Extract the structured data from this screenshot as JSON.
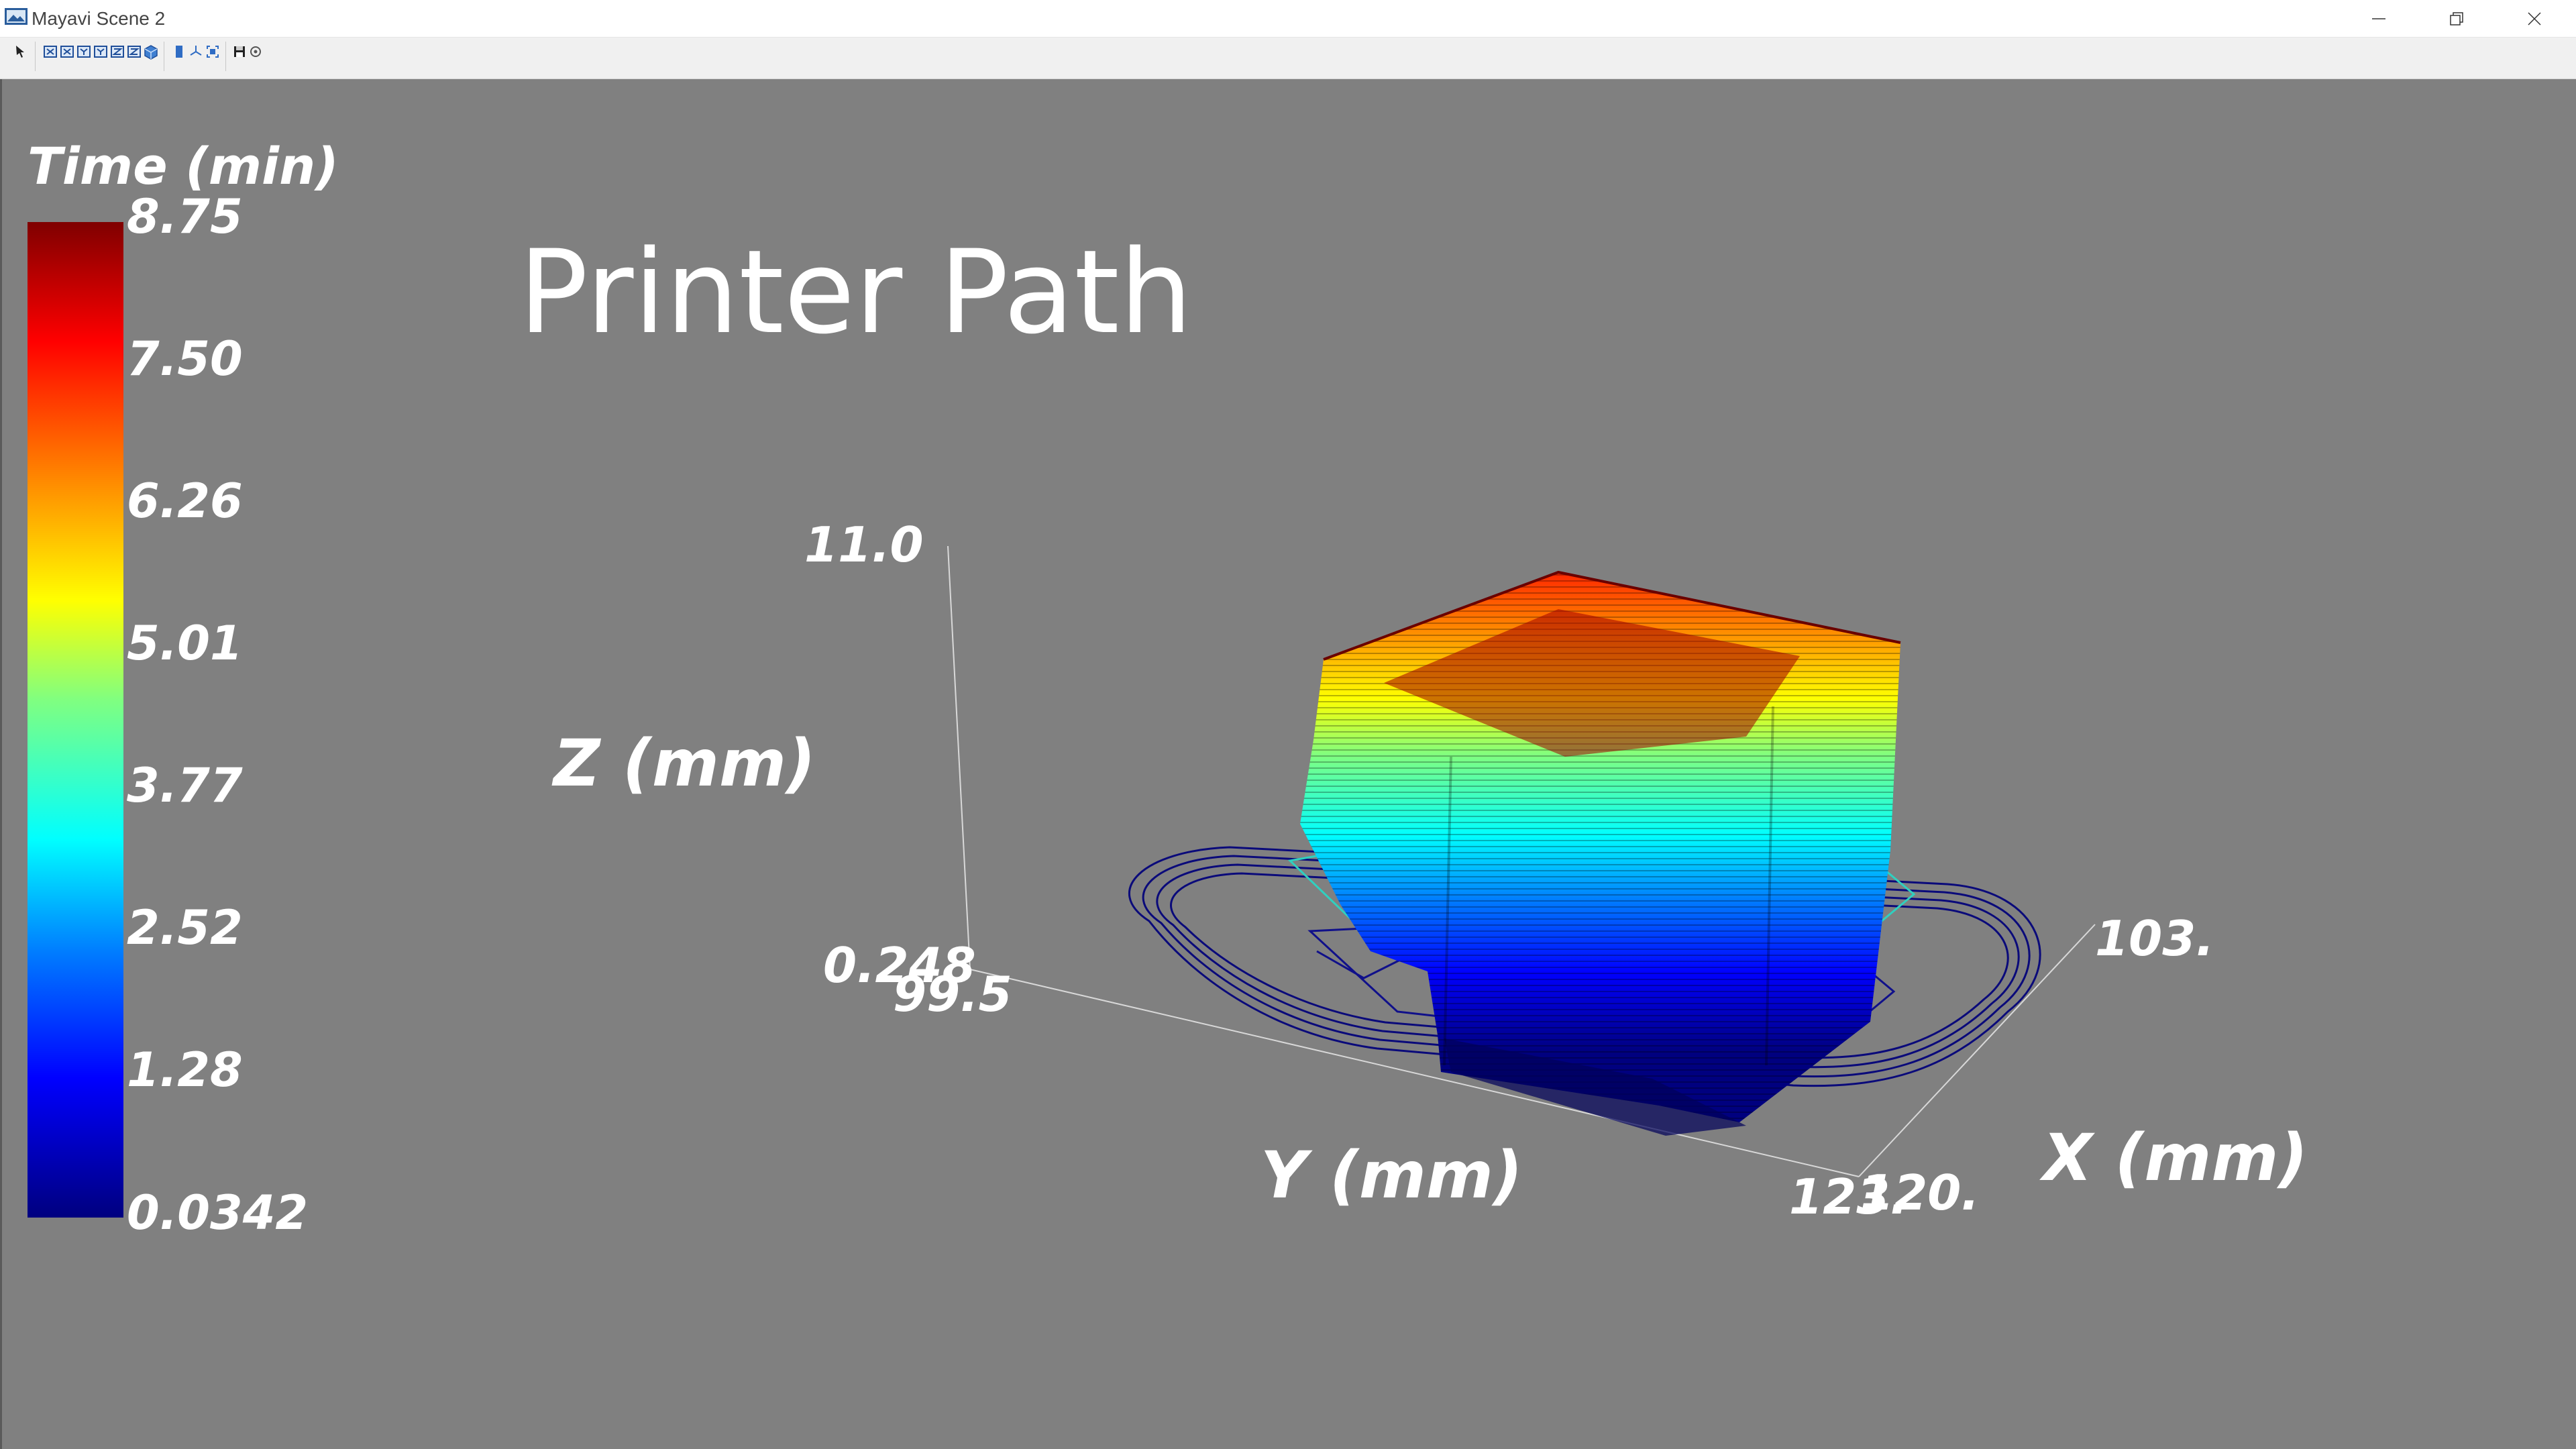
{
  "window": {
    "title": "Mayavi Scene 2",
    "controls": [
      "minimize-icon",
      "restore-icon",
      "close-icon"
    ]
  },
  "toolbar": {
    "icons": [
      "pointer-icon",
      "view-x-positive-icon",
      "view-x-negative-icon",
      "view-y-positive-icon",
      "view-y-negative-icon",
      "view-z-positive-icon",
      "view-z-negative-icon",
      "isometric-view-icon",
      "parallel-projection-icon",
      "axes-indicator-icon",
      "full-screen-icon",
      "save-icon",
      "configure-icon"
    ]
  },
  "scene": {
    "title": "Printer Path",
    "colorbar": {
      "title": "Time (min)",
      "labels": [
        "8.75",
        "7.50",
        "6.26",
        "5.01",
        "3.77",
        "2.52",
        "1.28",
        "0.0342"
      ],
      "colors": [
        "#00007f",
        "#0000ff",
        "#0080ff",
        "#00ffff",
        "#80ff80",
        "#ffff00",
        "#ff8000",
        "#ff0000",
        "#7f0000"
      ]
    },
    "axes": {
      "z": {
        "label": "Z (mm)",
        "max": "11.0",
        "min": "0.248"
      },
      "y": {
        "label": "Y (mm)",
        "min": "99.5",
        "max": "123."
      },
      "x": {
        "label": "X (mm)",
        "min": "120.",
        "max": "103."
      }
    },
    "background": "#808080"
  }
}
